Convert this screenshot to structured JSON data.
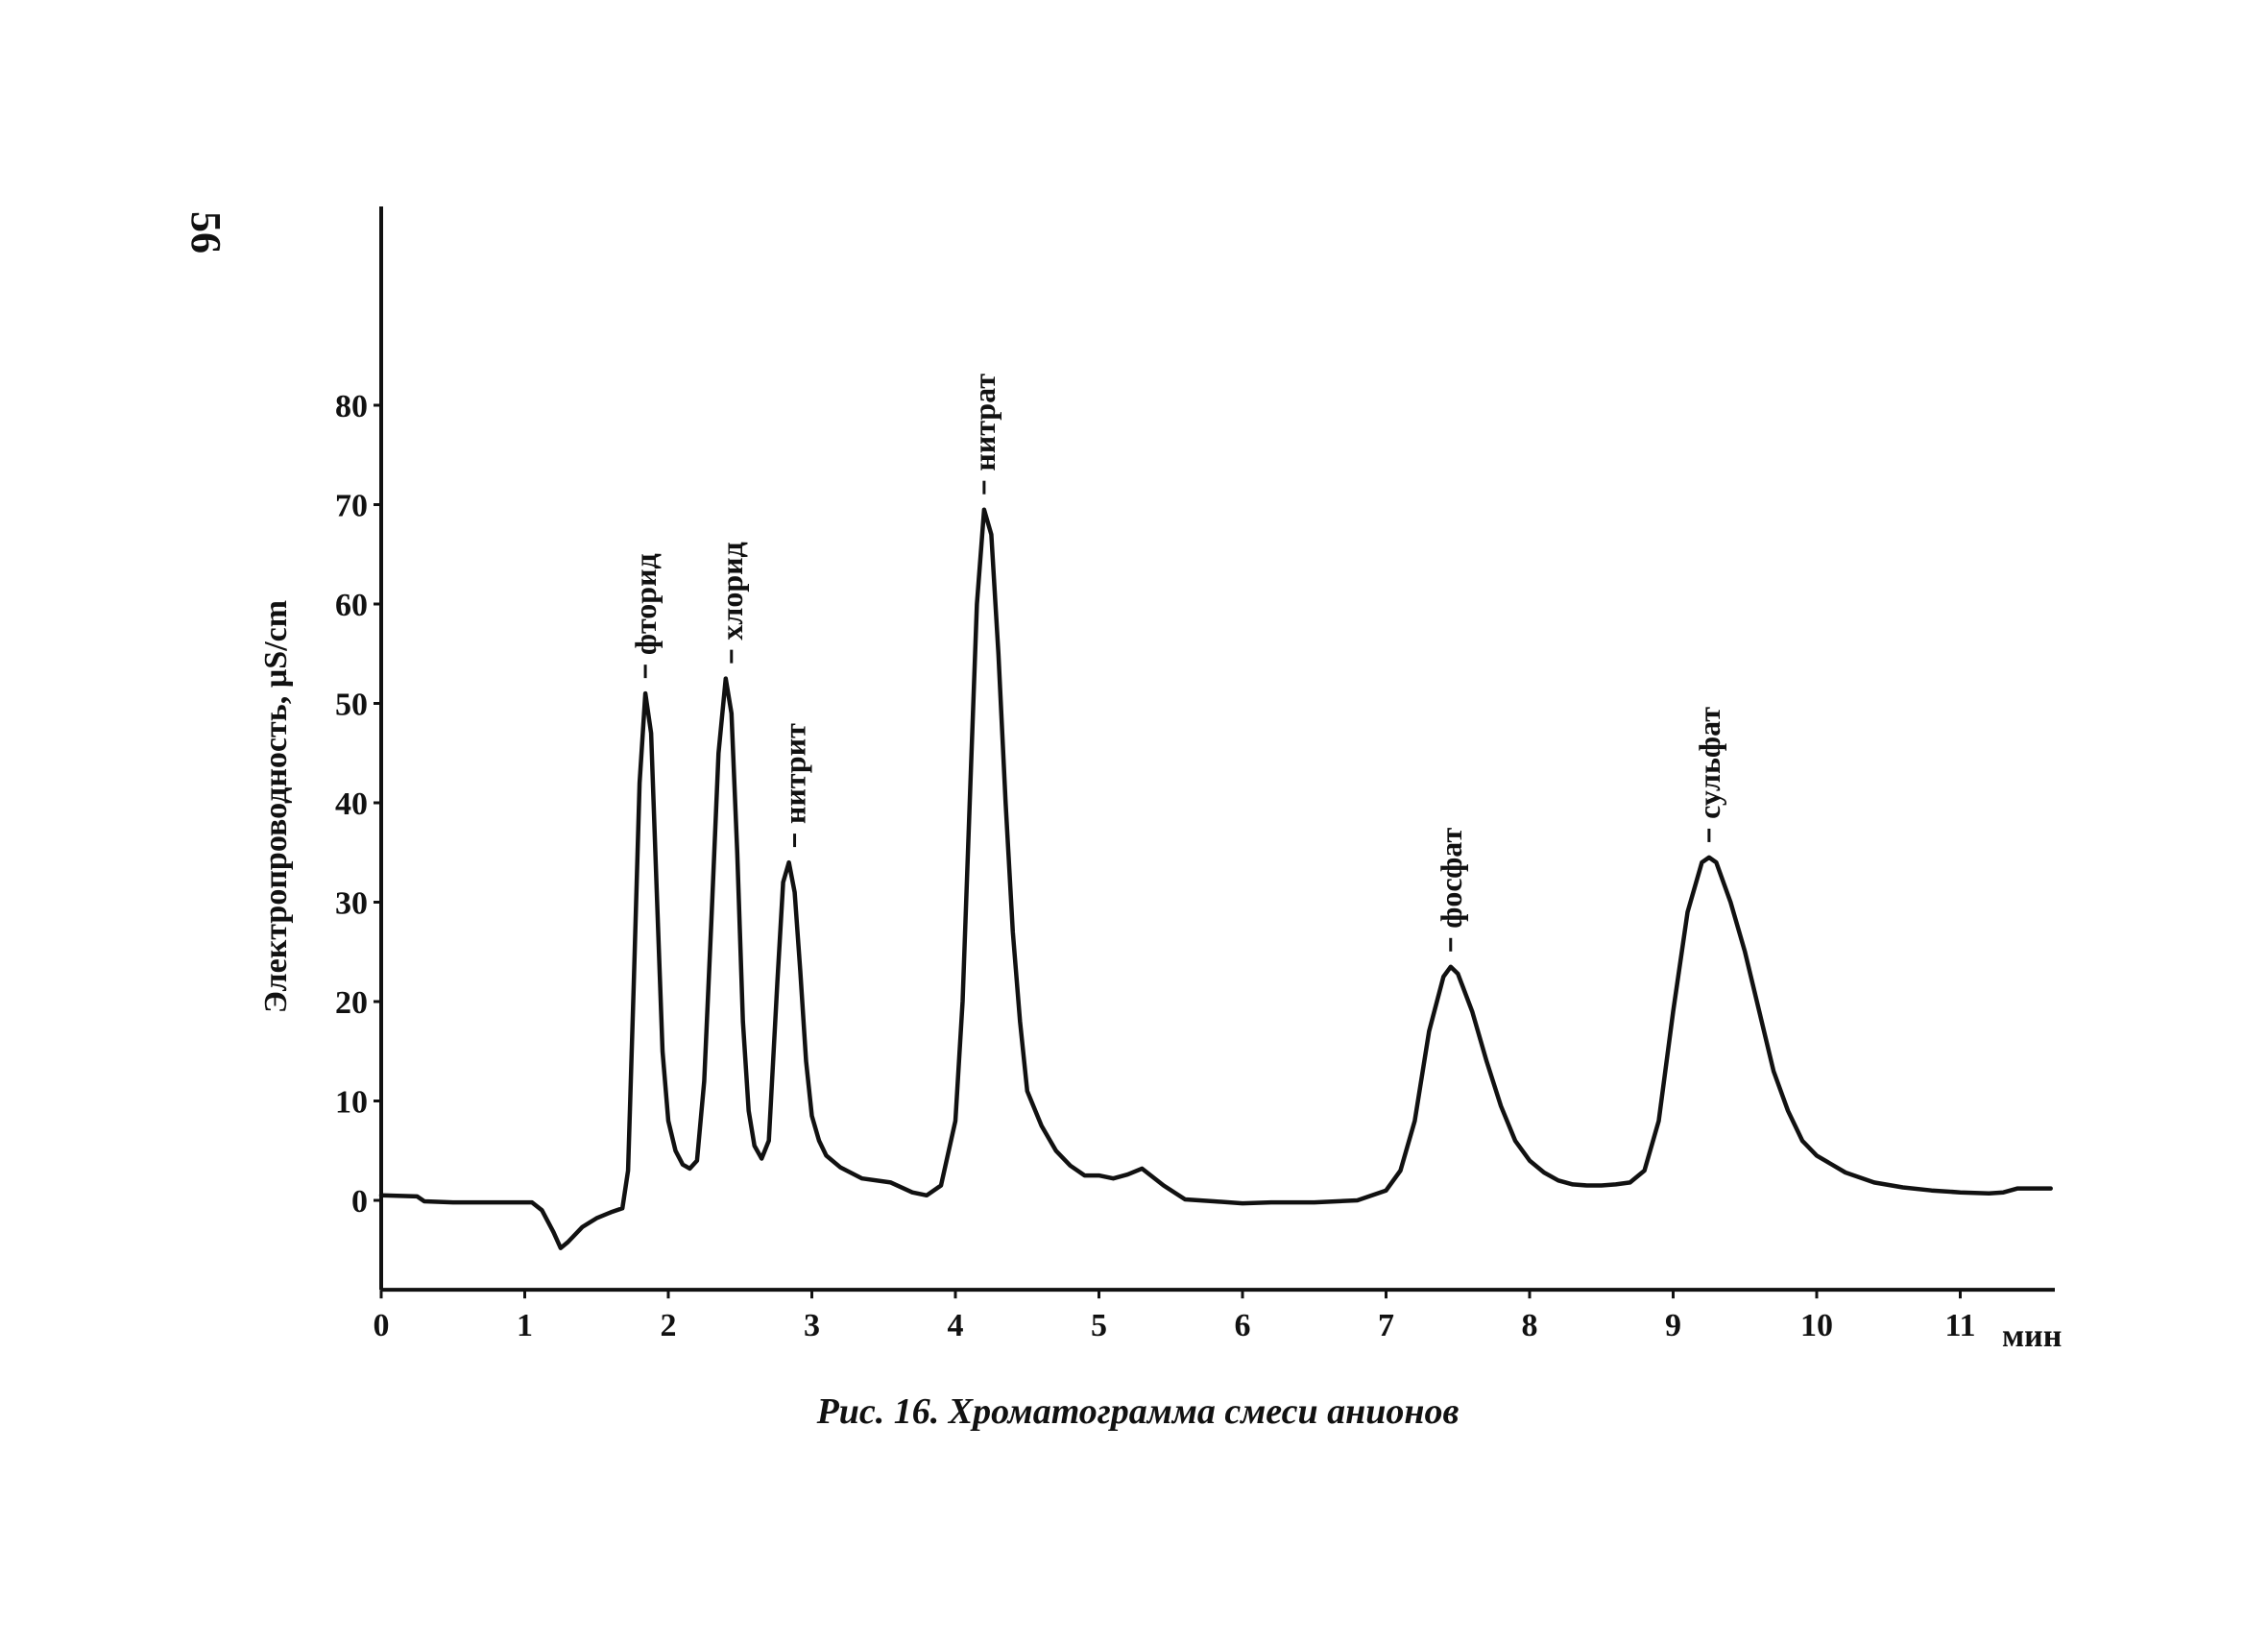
{
  "page_number": "56",
  "chart_data": {
    "type": "line",
    "title": "",
    "caption": "Рис. 16. Хроматограмма смеси анионов",
    "xlabel": "мин",
    "ylabel": "Электропроводность, µS/cm",
    "xlim": [
      0,
      11.5
    ],
    "ylim": [
      -9,
      100
    ],
    "x_ticks": [
      0,
      1,
      2,
      3,
      4,
      5,
      6,
      7,
      8,
      9,
      10,
      11
    ],
    "y_ticks": [
      0,
      10,
      20,
      30,
      40,
      50,
      60,
      70,
      80
    ],
    "grid": false,
    "legend": "none",
    "series": [
      {
        "x": [
          0,
          0.25,
          0.3,
          0.5,
          0.8,
          1.05,
          1.12,
          1.2,
          1.25,
          1.3,
          1.4,
          1.5,
          1.6,
          1.68,
          1.72,
          1.76,
          1.8,
          1.84,
          1.88,
          1.92,
          1.96,
          2.0,
          2.05,
          2.1,
          2.15,
          2.2,
          2.25,
          2.3,
          2.35,
          2.4,
          2.44,
          2.48,
          2.52,
          2.56,
          2.6,
          2.65,
          2.7,
          2.76,
          2.8,
          2.84,
          2.88,
          2.92,
          2.96,
          3.0,
          3.05,
          3.1,
          3.2,
          3.35,
          3.55,
          3.7,
          3.8,
          3.9,
          4.0,
          4.05,
          4.1,
          4.15,
          4.2,
          4.25,
          4.3,
          4.35,
          4.4,
          4.45,
          4.5,
          4.6,
          4.7,
          4.8,
          4.9,
          5.0,
          5.1,
          5.2,
          5.3,
          5.45,
          5.6,
          5.8,
          6.0,
          6.2,
          6.5,
          6.8,
          7.0,
          7.1,
          7.2,
          7.3,
          7.4,
          7.45,
          7.5,
          7.6,
          7.7,
          7.8,
          7.9,
          8.0,
          8.1,
          8.2,
          8.3,
          8.4,
          8.5,
          8.6,
          8.7,
          8.8,
          8.9,
          9.0,
          9.1,
          9.2,
          9.25,
          9.3,
          9.4,
          9.5,
          9.6,
          9.7,
          9.8,
          9.9,
          10.0,
          10.2,
          10.4,
          10.6,
          10.8,
          11.0,
          11.2,
          11.3,
          11.4,
          11.63
        ],
        "y": [
          0.5,
          0.4,
          -0.1,
          -0.2,
          -0.2,
          -0.2,
          -1.0,
          -3.2,
          -4.8,
          -4.2,
          -2.7,
          -1.8,
          -1.2,
          -0.8,
          3.0,
          22.0,
          42.0,
          51.0,
          47.0,
          31.0,
          15.0,
          8.0,
          5.0,
          3.6,
          3.2,
          4.0,
          12.0,
          28.0,
          45.0,
          52.5,
          49.0,
          35.0,
          18.0,
          9.0,
          5.5,
          4.2,
          6.0,
          22.0,
          32.0,
          34.0,
          31.0,
          23.0,
          14.0,
          8.5,
          6.0,
          4.5,
          3.3,
          2.2,
          1.8,
          0.8,
          0.5,
          1.5,
          8.0,
          20.0,
          40.0,
          60.0,
          69.5,
          67.0,
          55.0,
          40.0,
          27.0,
          18.0,
          11.0,
          7.5,
          5.0,
          3.5,
          2.5,
          2.5,
          2.2,
          2.6,
          3.2,
          1.5,
          0.1,
          -0.1,
          -0.3,
          -0.2,
          -0.2,
          0.0,
          1.0,
          3.0,
          8.0,
          17.0,
          22.5,
          23.5,
          22.8,
          19.0,
          14.0,
          9.5,
          6.0,
          4.0,
          2.8,
          2.0,
          1.6,
          1.5,
          1.5,
          1.6,
          1.8,
          3.0,
          8.0,
          19.0,
          29.0,
          34.0,
          34.5,
          34.0,
          30.0,
          25.0,
          19.0,
          13.0,
          9.0,
          6.0,
          4.5,
          2.8,
          1.8,
          1.3,
          1.0,
          0.8,
          0.7,
          0.8,
          1.2,
          1.2
        ]
      }
    ],
    "peaks": [
      {
        "label": "фторид",
        "x": 1.84,
        "y": 51
      },
      {
        "label": "хлорид",
        "x": 2.44,
        "y": 52.5
      },
      {
        "label": "нитрит",
        "x": 2.88,
        "y": 34
      },
      {
        "label": "нитрат",
        "x": 4.2,
        "y": 69.5
      },
      {
        "label": "фосфат",
        "x": 7.45,
        "y": 23.5
      },
      {
        "label": "сульфат",
        "x": 9.25,
        "y": 34.5
      }
    ]
  },
  "colors": {
    "line": "#111111",
    "background": "#ffffff"
  }
}
